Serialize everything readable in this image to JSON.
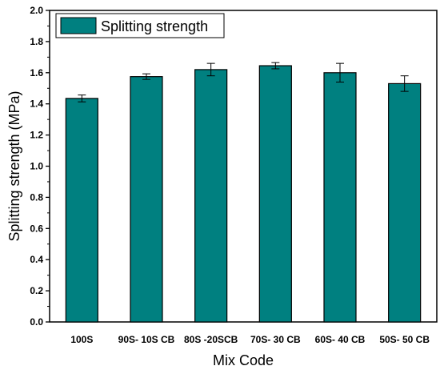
{
  "chart_data": {
    "type": "bar",
    "title": "",
    "xlabel": "Mix Code",
    "ylabel": "Splitting strength (MPa)",
    "ylim": [
      0,
      2.0
    ],
    "yticks": [
      "0.0",
      "0.2",
      "0.4",
      "0.6",
      "0.8",
      "1.0",
      "1.2",
      "1.4",
      "1.6",
      "1.8",
      "2.0"
    ],
    "categories": [
      "100S",
      "90S- 10S CB",
      "80S -20SCB",
      "70S- 30 CB",
      "60S- 40 CB",
      "50S- 50 CB"
    ],
    "series": [
      {
        "name": "Splitting strength",
        "values": [
          1.435,
          1.575,
          1.62,
          1.645,
          1.6,
          1.53
        ],
        "errors": [
          0.022,
          0.018,
          0.04,
          0.02,
          0.06,
          0.05
        ],
        "color": "#008080"
      }
    ],
    "legend_position": "top-left",
    "grid": false
  }
}
